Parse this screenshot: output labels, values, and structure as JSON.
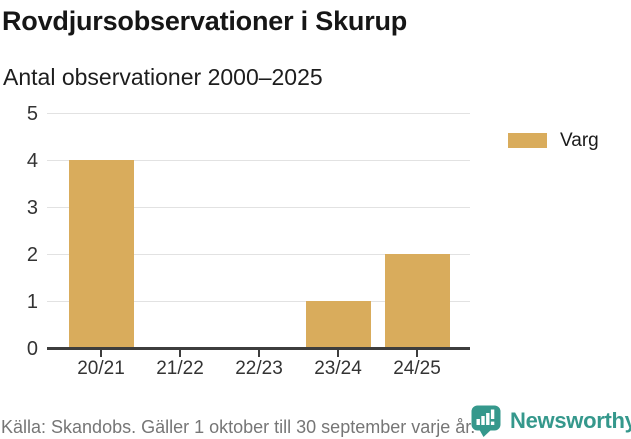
{
  "header": {
    "title": "Rovdjursobservationer i Skurup",
    "subtitle": "Antal observationer 2000–2025"
  },
  "legend": {
    "items": [
      {
        "label": "Varg",
        "color": "#d9ac5c"
      }
    ]
  },
  "chart_data": {
    "type": "bar",
    "title": "Rovdjursobservationer i Skurup",
    "subtitle": "Antal observationer 2000–2025",
    "categories": [
      "20/21",
      "21/22",
      "22/23",
      "23/24",
      "24/25"
    ],
    "series": [
      {
        "name": "Varg",
        "values": [
          4,
          0,
          0,
          1,
          2
        ]
      }
    ],
    "xlabel": "",
    "ylabel": "",
    "ylim": [
      0,
      5
    ],
    "yticks": [
      0,
      1,
      2,
      3,
      4,
      5
    ],
    "grid": true,
    "legend_position": "right",
    "bar_color": "#d9ac5c"
  },
  "footer": {
    "source": "Källa: Skandobs. Gäller 1 oktober till 30 september varje år.",
    "brand": "Newsworthy"
  },
  "colors": {
    "bar": "#d9ac5c",
    "brand_teal": "#35988c",
    "grid": "#e2e2e2",
    "axis": "#3d3d3d",
    "text_dark": "#161616",
    "text_axis": "#333333",
    "text_muted": "#767676"
  }
}
